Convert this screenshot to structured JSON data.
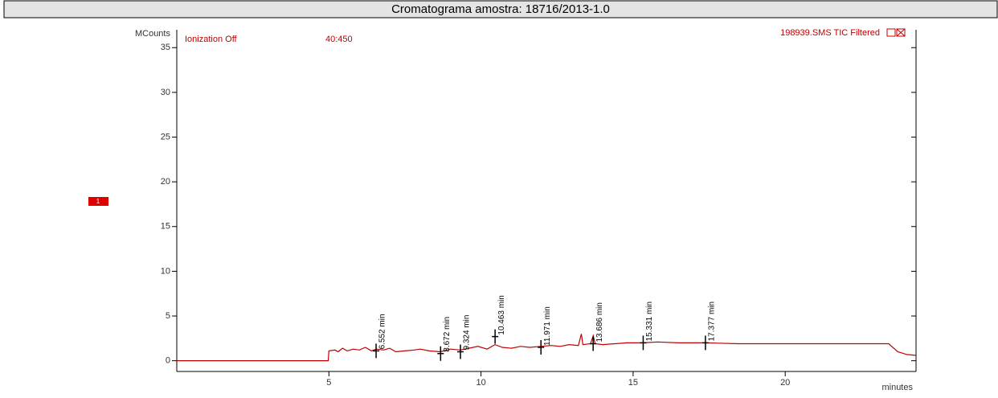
{
  "chart_data": {
    "type": "line",
    "title": "Cromatograma amostra: 18716/2013-1.0",
    "ylabel": "MCounts",
    "xlabel": "minutes",
    "annotations": [
      "Ionization Off",
      "40:450"
    ],
    "badge": "1",
    "series": [
      {
        "name": "198939.SMS TIC Filtered",
        "color": "#c00000",
        "x": [
          0,
          4.98,
          5.0,
          5.2,
          5.3,
          5.45,
          5.6,
          5.8,
          6.0,
          6.2,
          6.4,
          6.55,
          6.8,
          7.0,
          7.2,
          7.5,
          7.8,
          8.0,
          8.3,
          8.67,
          9.0,
          9.32,
          9.6,
          9.9,
          10.2,
          10.46,
          10.7,
          11.0,
          11.3,
          11.6,
          11.97,
          12.3,
          12.6,
          12.9,
          13.2,
          13.3,
          13.35,
          13.6,
          13.69,
          13.75,
          14.0,
          14.4,
          14.8,
          15.33,
          15.8,
          16.5,
          17.38,
          18.5,
          19.5,
          20.5,
          21.5,
          22.5,
          23.4,
          23.7,
          24.0,
          24.3
        ],
        "values": [
          0,
          0,
          1.1,
          1.2,
          1.0,
          1.4,
          1.1,
          1.3,
          1.2,
          1.5,
          1.1,
          1.3,
          1.2,
          1.4,
          1.0,
          1.1,
          1.2,
          1.3,
          1.1,
          1.0,
          1.3,
          1.2,
          1.4,
          1.6,
          1.3,
          1.8,
          1.5,
          1.4,
          1.6,
          1.5,
          1.6,
          1.7,
          1.6,
          1.8,
          1.7,
          3.0,
          1.8,
          1.9,
          2.8,
          1.9,
          1.8,
          1.9,
          2.0,
          2.0,
          2.1,
          2.0,
          2.0,
          1.9,
          1.9,
          1.9,
          1.9,
          1.9,
          1.9,
          1.0,
          0.7,
          0.6
        ]
      }
    ],
    "peaks": [
      {
        "x": 6.552,
        "y": 1.1,
        "label": "6.552 min"
      },
      {
        "x": 8.672,
        "y": 0.8,
        "label": "8.672 min"
      },
      {
        "x": 9.324,
        "y": 1.0,
        "label": "9.324 min"
      },
      {
        "x": 10.463,
        "y": 2.7,
        "label": "10.463 min"
      },
      {
        "x": 11.971,
        "y": 1.5,
        "label": "11.971 min"
      },
      {
        "x": 13.686,
        "y": 1.9,
        "label": "13.686 min"
      },
      {
        "x": 15.331,
        "y": 2.0,
        "label": "15.331 min"
      },
      {
        "x": 17.377,
        "y": 2.0,
        "label": "17.377 min"
      }
    ],
    "xlim": [
      0,
      24.3
    ],
    "ylim": [
      -1.2,
      37
    ],
    "xticks": [
      5,
      10,
      15,
      20
    ],
    "yticks": [
      0,
      5,
      10,
      15,
      20,
      25,
      30,
      35
    ]
  }
}
